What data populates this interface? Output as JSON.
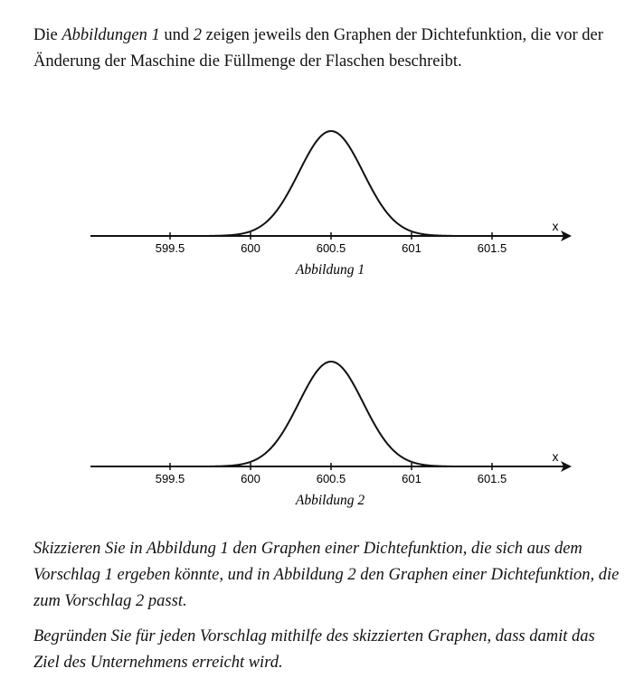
{
  "intro": {
    "p1": "Die ",
    "em1": "Abbildungen 1",
    "p2": " und ",
    "em2": "2",
    "p3": " zeigen jeweils den Graphen der Dichtefunktion, die vor der Änderung der Maschine die Füllmenge der Flaschen beschreibt."
  },
  "figures": [
    {
      "caption": "Abbildung 1",
      "axis_label": "x",
      "ticks": [
        "599.5",
        "600",
        "600.5",
        "601",
        "601.5"
      ]
    },
    {
      "caption": "Abbildung 2",
      "axis_label": "x",
      "ticks": [
        "599.5",
        "600",
        "600.5",
        "601",
        "601.5"
      ]
    }
  ],
  "chart_data": [
    {
      "type": "line",
      "title": "",
      "xlabel": "x",
      "ylabel": "",
      "x_ticks": [
        599.5,
        600,
        600.5,
        601,
        601.5
      ],
      "curve": "normal density",
      "mean": 600.5,
      "sigma": 0.2
    },
    {
      "type": "line",
      "title": "",
      "xlabel": "x",
      "ylabel": "",
      "x_ticks": [
        599.5,
        600,
        600.5,
        601,
        601.5
      ],
      "curve": "normal density",
      "mean": 600.5,
      "sigma": 0.2
    }
  ],
  "task": {
    "text1": "Skizzieren Sie in Abbildung 1 den Graphen einer Dichtefunktion, die sich aus dem Vorschlag 1 ergeben könnte, und in Abbildung 2 den Graphen einer Dichtefunktion, die zum Vorschlag 2 passt.",
    "text2": "Begründen Sie für jeden Vorschlag mithilfe des skizzierten Graphen, dass damit das Ziel des Unternehmens erreicht wird."
  }
}
